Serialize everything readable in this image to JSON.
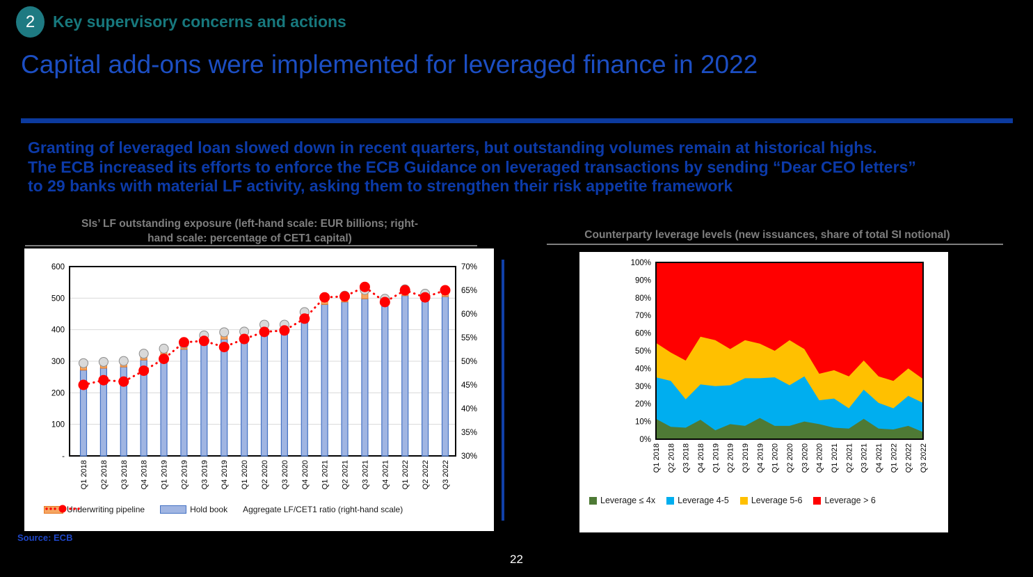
{
  "header": {
    "badge": "2",
    "section": "Key supervisory concerns and actions",
    "title": "Capital add-ons were implemented for leveraged finance in 2022"
  },
  "body": {
    "line1": "Granting of leveraged loan slowed down in recent quarters, but outstanding volumes remain at historical highs.",
    "line2": "The ECB increased its efforts to enforce the ECB Guidance on leveraged transactions by sending “Dear CEO letters”",
    "line3": "to 29 banks with material LF activity, asking them to strengthen their risk appetite framework"
  },
  "footer": {
    "source": "Source: ECB",
    "page_number": "22"
  },
  "colors": {
    "accent_teal": "#1e7a82",
    "title_blue": "#1c4ec2",
    "body_blue": "#0c3aa8",
    "rule_blue": "#0c3a9e",
    "gray_title": "#7f7f7f",
    "bar_fill": "#a0b5e2",
    "bar_stroke": "#4472c4",
    "pipeline_fill": "#f5a662",
    "pipeline_stroke": "#e87722",
    "marker_gray_fill": "#d9d9d9",
    "marker_gray_stroke": "#8c8c8c",
    "ratio_red": "#ff0000",
    "area_green": "#4e7a35",
    "area_blue": "#00aeef",
    "area_yellow": "#ffc000",
    "area_red": "#ff0000",
    "gridline": "#d9d9d9"
  },
  "chart_data": [
    {
      "id": "lf_exposure",
      "type": "bar",
      "title_lines": [
        "SIs’ LF outstanding exposure (left-hand scale: EUR billions;  right-",
        "hand scale: percentage of CET1 capital)"
      ],
      "categories": [
        "Q1 2018",
        "Q2 2018",
        "Q3 2018",
        "Q4 2018",
        "Q1 2019",
        "Q2 2019",
        "Q3 2019",
        "Q4 2019",
        "Q1 2020",
        "Q2 2020",
        "Q3 2020",
        "Q4 2020",
        "Q1 2021",
        "Q2 2021",
        "Q3 2021",
        "Q4 2021",
        "Q1 2022",
        "Q2 2022",
        "Q3 2022"
      ],
      "series": [
        {
          "name": "Hold book",
          "type": "bar",
          "axis": "left",
          "values": [
            272,
            278,
            282,
            304,
            320,
            338,
            360,
            370,
            368,
            388,
            392,
            436,
            480,
            488,
            498,
            476,
            508,
            490,
            505
          ]
        },
        {
          "name": "Underwriting pipeline",
          "type": "bar",
          "axis": "left",
          "values": [
            12,
            10,
            9,
            10,
            10,
            8,
            12,
            12,
            16,
            18,
            14,
            10,
            12,
            10,
            18,
            12,
            10,
            14,
            10
          ]
        },
        {
          "name": "Aggregate LF/CET1 ratio (right-hand scale)",
          "type": "line",
          "axis": "right",
          "values": [
            45.0,
            46.0,
            45.7,
            48.0,
            50.5,
            54.0,
            54.3,
            53.0,
            54.7,
            56.2,
            56.5,
            59.0,
            63.5,
            63.7,
            65.7,
            62.5,
            65.0,
            63.5,
            65.0
          ]
        }
      ],
      "left_axis": {
        "min": 0,
        "max": 600,
        "step": 100,
        "ticks": [
          "-",
          "100",
          "200",
          "300",
          "400",
          "500",
          "600"
        ]
      },
      "right_axis": {
        "min": 30,
        "max": 70,
        "step": 5,
        "ticks": [
          "30%",
          "35%",
          "40%",
          "45%",
          "50%",
          "55%",
          "60%",
          "65%",
          "70%"
        ]
      },
      "grid": true,
      "legend_position": "bottom"
    },
    {
      "id": "leverage_levels",
      "type": "area",
      "title": "Counterparty leverage levels (new issuances, share of total SI notional)",
      "categories": [
        "Q1 2018",
        "Q2 2018",
        "Q3 2018",
        "Q4 2018",
        "Q1 2019",
        "Q2 2019",
        "Q3 2019",
        "Q4 2019",
        "Q1 2020",
        "Q2 2020",
        "Q3 2020",
        "Q4 2020",
        "Q1 2021",
        "Q2 2021",
        "Q3 2021",
        "Q4 2021",
        "Q1 2022",
        "Q2 2022",
        "Q3 2022"
      ],
      "series": [
        {
          "name": "Leverage ≤ 4x",
          "color_key": "area_green",
          "values": [
            11.5,
            7,
            6.5,
            11,
            5,
            8.5,
            7.5,
            12,
            7.5,
            7.5,
            10,
            8.5,
            6.5,
            6,
            11.5,
            6,
            5.5,
            7.5,
            4
          ]
        },
        {
          "name": "Leverage 4-5",
          "color_key": "area_blue",
          "values": [
            23.5,
            26,
            16,
            20,
            25,
            22,
            27,
            22.5,
            27.5,
            23,
            25.5,
            13.5,
            16.5,
            11.5,
            16.5,
            14.5,
            12,
            17,
            16.5
          ]
        },
        {
          "name": "Leverage 5-6",
          "color_key": "area_yellow",
          "values": [
            19.5,
            16,
            22,
            27,
            26,
            20.5,
            21.5,
            19.5,
            15,
            25.5,
            15.5,
            15,
            16,
            18,
            16.5,
            15,
            15.5,
            15.5,
            13.5
          ]
        },
        {
          "name": "Leverage > 6",
          "color_key": "area_red",
          "values": [
            45.5,
            51,
            55.5,
            42,
            44,
            49,
            44,
            46,
            50,
            44,
            49,
            63,
            61,
            64.5,
            55.5,
            64.5,
            67,
            60,
            66
          ]
        }
      ],
      "y_axis": {
        "min": 0,
        "max": 100,
        "step": 10,
        "ticks": [
          "0%",
          "10%",
          "20%",
          "30%",
          "40%",
          "50%",
          "60%",
          "70%",
          "80%",
          "90%",
          "100%"
        ]
      },
      "grid": false,
      "legend_position": "bottom"
    }
  ]
}
